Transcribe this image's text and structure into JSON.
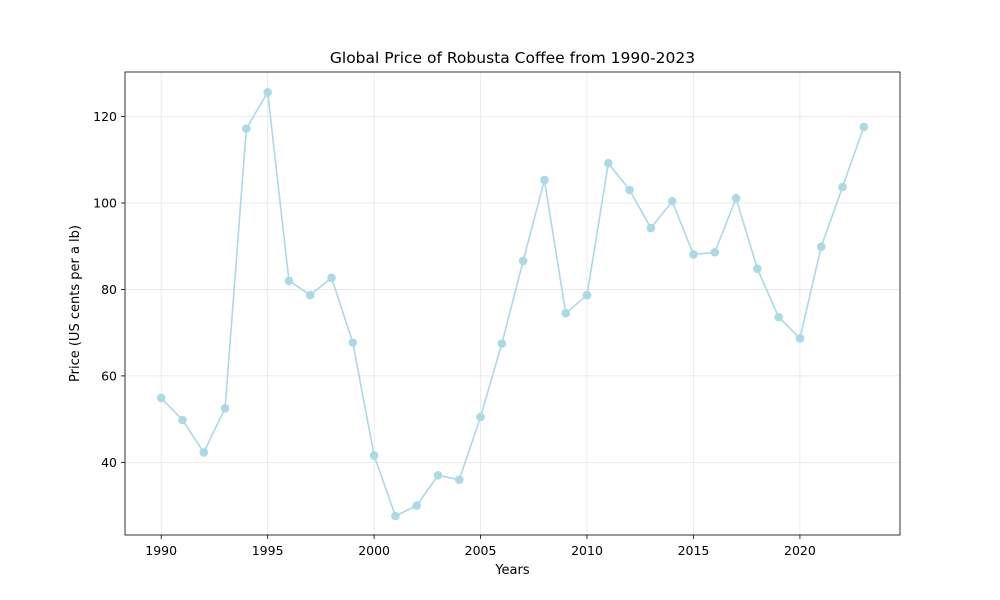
{
  "chart_data": {
    "type": "line",
    "title": "Global Price of Robusta Coffee from 1990-2023",
    "xlabel": "Years",
    "ylabel": "Price (US cents per a lb)",
    "xlim": [
      1988.3,
      2024.7
    ],
    "ylim": [
      23.2,
      130.3
    ],
    "xticks": [
      1990,
      1995,
      2000,
      2005,
      2010,
      2015,
      2020
    ],
    "yticks": [
      40,
      60,
      80,
      100,
      120
    ],
    "grid": true,
    "marker": "circle",
    "line_color": "#add8e6",
    "series": [
      {
        "x": [
          1990,
          1991,
          1992,
          1993,
          1994,
          1995,
          1996,
          1997,
          1998,
          1999,
          2000,
          2001,
          2002,
          2003,
          2004,
          2005,
          2006,
          2007,
          2008,
          2009,
          2010,
          2011,
          2012,
          2013,
          2014,
          2015,
          2016,
          2017,
          2018,
          2019,
          2020,
          2021,
          2022,
          2023
        ],
        "y": [
          54.9,
          49.8,
          42.3,
          52.5,
          117.2,
          125.6,
          82.0,
          78.7,
          82.7,
          67.7,
          41.6,
          27.6,
          30.0,
          37.0,
          36.0,
          50.5,
          67.5,
          86.6,
          105.3,
          74.5,
          78.7,
          109.2,
          103.0,
          94.2,
          100.4,
          88.1,
          88.6,
          101.1,
          84.8,
          73.6,
          68.7,
          89.9,
          103.7,
          117.6
        ]
      }
    ]
  }
}
